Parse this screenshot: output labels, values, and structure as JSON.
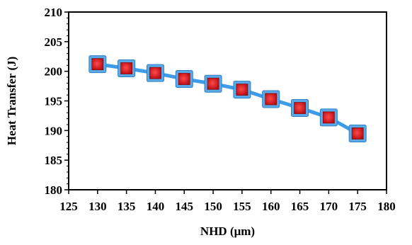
{
  "chart_data": {
    "type": "line",
    "title": "",
    "xlabel": "NHD (μm)",
    "ylabel": "Heat Transfer (J)",
    "xlim": [
      125,
      180
    ],
    "ylim": [
      180,
      210
    ],
    "x_ticks": [
      "125",
      "130",
      "135",
      "140",
      "145",
      "150",
      "155",
      "160",
      "165",
      "170",
      "175",
      "180"
    ],
    "y_ticks": [
      "180",
      "185",
      "190",
      "195",
      "200",
      "205",
      "210"
    ],
    "grid": false,
    "legend": "none",
    "series": [
      {
        "x": [
          130,
          135,
          140,
          145,
          150,
          155,
          160,
          165,
          170,
          175
        ],
        "y": [
          201.2,
          200.5,
          199.7,
          198.7,
          197.9,
          196.9,
          195.3,
          193.8,
          192.2,
          189.5
        ],
        "line_color": "#3d9be9",
        "marker": "square",
        "marker_fill": "#e0141e",
        "marker_edge": "#5aaae8"
      }
    ]
  }
}
